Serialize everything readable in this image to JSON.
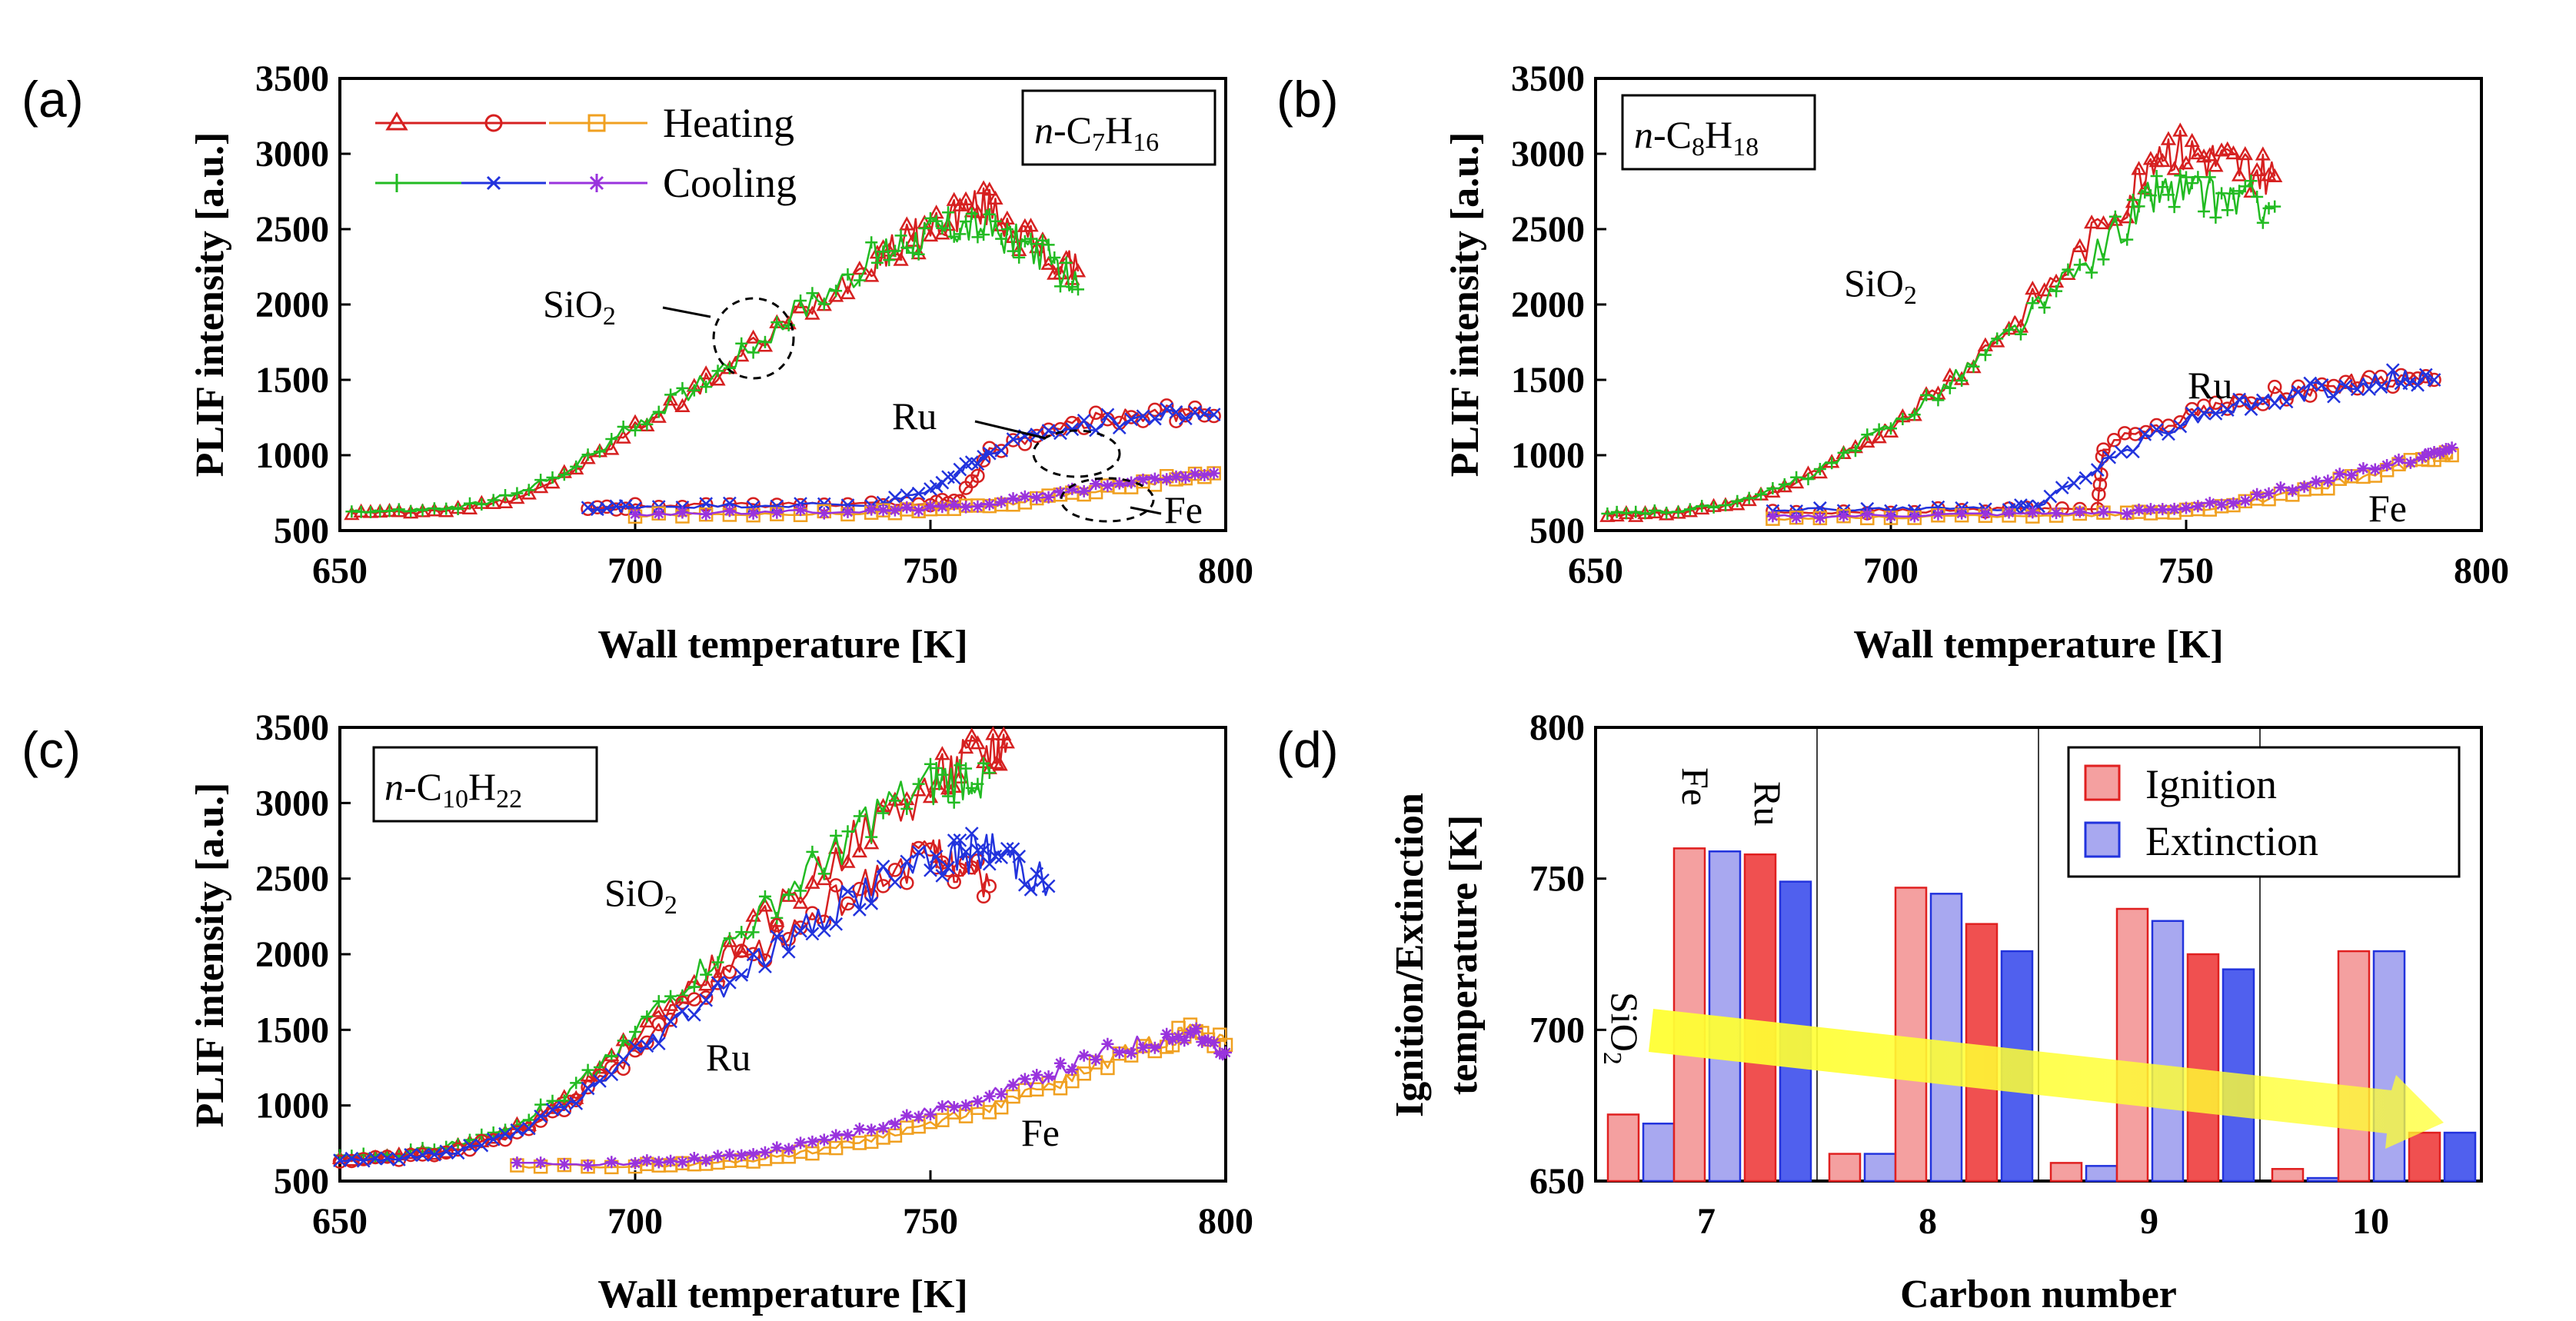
{
  "chart_data": [
    {
      "panel": "(a)",
      "type": "line",
      "fuel_label": {
        "italic": "n",
        "text": "-C",
        "sub1": "7",
        "mid": "H",
        "sub2": "16"
      },
      "xlabel": "Wall temperature [K]",
      "ylabel": "PLIF intensity [a.u.]",
      "xlim": [
        650,
        800
      ],
      "ylim": [
        500,
        3500
      ],
      "xticks": [
        "650",
        "700",
        "750",
        "800"
      ],
      "yticks": [
        "500",
        "1000",
        "1500",
        "2000",
        "2500",
        "3000",
        "3500"
      ],
      "legend": {
        "heating": "Heating",
        "cooling": "Cooling",
        "placement": "top-left"
      },
      "annotations": {
        "sio2": "SiO",
        "sio2_sub": "2",
        "ru": "Ru",
        "fe": "Fe"
      },
      "series": [
        {
          "name": "SiO2 heating",
          "mode": "heating",
          "color": "#d62020",
          "marker": "triangle",
          "x": [
            652,
            660,
            670,
            680,
            690,
            700,
            710,
            720,
            730,
            740,
            745,
            750,
            755,
            760,
            765,
            770,
            775
          ],
          "y": [
            620,
            620,
            640,
            720,
            900,
            1180,
            1420,
            1720,
            2000,
            2300,
            2400,
            2500,
            2620,
            2650,
            2480,
            2300,
            2220
          ]
        },
        {
          "name": "SiO2 cooling",
          "mode": "cooling",
          "color": "#22bb22",
          "marker": "plus",
          "x": [
            652,
            660,
            670,
            680,
            690,
            700,
            710,
            720,
            730,
            740,
            745,
            750,
            755,
            760,
            765,
            770,
            775
          ],
          "y": [
            630,
            630,
            650,
            740,
            930,
            1200,
            1450,
            1740,
            2020,
            2300,
            2400,
            2480,
            2520,
            2500,
            2420,
            2300,
            2100
          ]
        },
        {
          "name": "Ru heating",
          "mode": "heating",
          "color": "#d62020",
          "marker": "circle",
          "x": [
            692,
            700,
            720,
            740,
            750,
            755,
            760,
            770,
            780,
            790,
            798
          ],
          "y": [
            640,
            660,
            670,
            670,
            680,
            700,
            1020,
            1180,
            1250,
            1280,
            1260
          ]
        },
        {
          "name": "Ru cooling",
          "mode": "cooling",
          "color": "#2233dd",
          "marker": "x",
          "x": [
            692,
            700,
            720,
            740,
            750,
            755,
            760,
            770,
            780,
            790,
            798
          ],
          "y": [
            640,
            660,
            670,
            670,
            760,
            900,
            1020,
            1150,
            1220,
            1260,
            1270
          ]
        },
        {
          "name": "Fe heating",
          "mode": "heating",
          "color": "#f0a020",
          "marker": "square",
          "x": [
            700,
            720,
            740,
            750,
            760,
            770,
            780,
            790,
            798
          ],
          "y": [
            600,
            610,
            620,
            640,
            660,
            720,
            780,
            840,
            880
          ]
        },
        {
          "name": "Fe cooling",
          "mode": "cooling",
          "color": "#9933dd",
          "marker": "star",
          "x": [
            700,
            720,
            740,
            750,
            760,
            770,
            780,
            790,
            798
          ],
          "y": [
            610,
            620,
            630,
            650,
            680,
            740,
            800,
            860,
            880
          ]
        }
      ]
    },
    {
      "panel": "(b)",
      "type": "line",
      "fuel_label": {
        "italic": "n",
        "text": "-C",
        "sub1": "8",
        "mid": "H",
        "sub2": "18"
      },
      "xlabel": "Wall temperature [K]",
      "ylabel": "PLIF intensity [a.u.]",
      "xlim": [
        650,
        800
      ],
      "ylim": [
        500,
        3500
      ],
      "xticks": [
        "650",
        "700",
        "750",
        "800"
      ],
      "yticks": [
        "500",
        "1000",
        "1500",
        "2000",
        "2500",
        "3000",
        "3500"
      ],
      "annotations": {
        "sio2": "SiO",
        "sio2_sub": "2",
        "ru": "Ru",
        "fe": "Fe"
      },
      "series": [
        {
          "name": "SiO2 heating",
          "mode": "heating",
          "color": "#d62020",
          "marker": "triangle",
          "x": [
            652,
            660,
            670,
            680,
            690,
            700,
            710,
            720,
            730,
            740,
            745,
            750,
            755,
            760,
            765
          ],
          "y": [
            600,
            610,
            650,
            750,
            930,
            1200,
            1500,
            1850,
            2250,
            2700,
            3050,
            3000,
            2950,
            2900,
            2850
          ]
        },
        {
          "name": "SiO2 cooling",
          "mode": "cooling",
          "color": "#22bb22",
          "marker": "plus",
          "x": [
            652,
            660,
            670,
            680,
            690,
            700,
            710,
            720,
            730,
            740,
            745,
            750,
            755,
            760,
            765
          ],
          "y": [
            610,
            620,
            660,
            760,
            940,
            1200,
            1480,
            1800,
            2150,
            2550,
            2750,
            2750,
            2700,
            2700,
            2650
          ]
        },
        {
          "name": "Ru heating",
          "mode": "heating",
          "color": "#d62020",
          "marker": "circle",
          "x": [
            680,
            700,
            720,
            735,
            736,
            745,
            755,
            765,
            775,
            785,
            792
          ],
          "y": [
            620,
            630,
            640,
            650,
            1050,
            1200,
            1320,
            1400,
            1460,
            1520,
            1500
          ]
        },
        {
          "name": "Ru cooling",
          "mode": "cooling",
          "color": "#2233dd",
          "marker": "x",
          "x": [
            680,
            700,
            720,
            725,
            735,
            745,
            755,
            765,
            775,
            785,
            792
          ],
          "y": [
            640,
            640,
            650,
            660,
            930,
            1150,
            1300,
            1380,
            1440,
            1500,
            1500
          ]
        },
        {
          "name": "Fe heating",
          "mode": "heating",
          "color": "#f0a020",
          "marker": "square",
          "x": [
            680,
            700,
            720,
            740,
            750,
            760,
            770,
            780,
            790,
            795
          ],
          "y": [
            580,
            590,
            600,
            610,
            630,
            680,
            760,
            860,
            960,
            1000
          ]
        },
        {
          "name": "Fe cooling",
          "mode": "cooling",
          "color": "#9933dd",
          "marker": "star",
          "x": [
            680,
            700,
            720,
            740,
            750,
            760,
            770,
            780,
            790,
            795
          ],
          "y": [
            590,
            600,
            610,
            620,
            650,
            710,
            800,
            900,
            1000,
            1050
          ]
        }
      ]
    },
    {
      "panel": "(c)",
      "type": "line",
      "fuel_label": {
        "italic": "n",
        "text": "-C",
        "sub1": "10",
        "mid": "H",
        "sub2": "22"
      },
      "xlabel": "Wall temperature [K]",
      "ylabel": "PLIF intensity [a.u.]",
      "xlim": [
        650,
        800
      ],
      "ylim": [
        500,
        3500
      ],
      "xticks": [
        "650",
        "700",
        "750",
        "800"
      ],
      "yticks": [
        "500",
        "1000",
        "1500",
        "2000",
        "2500",
        "3000",
        "3500"
      ],
      "annotations": {
        "sio2": "SiO",
        "sio2_sub": "2",
        "ru": "Ru",
        "fe": "Fe"
      },
      "series": [
        {
          "name": "SiO2 heating",
          "mode": "heating",
          "color": "#d62020",
          "marker": "triangle",
          "x": [
            650,
            660,
            670,
            680,
            690,
            700,
            710,
            720,
            730,
            740,
            750,
            755,
            760,
            763
          ],
          "y": [
            650,
            660,
            720,
            850,
            1080,
            1450,
            1800,
            2150,
            2500,
            2850,
            3100,
            3250,
            3350,
            3400
          ]
        },
        {
          "name": "SiO2 cooling",
          "mode": "cooling",
          "color": "#22bb22",
          "marker": "plus",
          "x": [
            650,
            660,
            670,
            680,
            690,
            700,
            710,
            720,
            730,
            740,
            750,
            755,
            760
          ],
          "y": [
            660,
            680,
            750,
            880,
            1120,
            1500,
            1850,
            2200,
            2550,
            2900,
            3100,
            3150,
            3200
          ]
        },
        {
          "name": "Ru heating",
          "mode": "heating",
          "color": "#d62020",
          "marker": "circle",
          "x": [
            650,
            660,
            670,
            680,
            690,
            700,
            710,
            720,
            730,
            740,
            750,
            755,
            760
          ],
          "y": [
            640,
            650,
            700,
            820,
            1030,
            1350,
            1680,
            2000,
            2250,
            2500,
            2650,
            2600,
            2450
          ]
        },
        {
          "name": "Ru cooling",
          "mode": "cooling",
          "color": "#2233dd",
          "marker": "x",
          "x": [
            650,
            660,
            670,
            680,
            690,
            700,
            710,
            720,
            730,
            740,
            750,
            755,
            760,
            765,
            770
          ],
          "y": [
            640,
            650,
            700,
            820,
            1030,
            1350,
            1650,
            1950,
            2200,
            2450,
            2600,
            2650,
            2700,
            2600,
            2450
          ]
        },
        {
          "name": "Fe heating",
          "mode": "heating",
          "color": "#f0a020",
          "marker": "square",
          "x": [
            680,
            700,
            710,
            720,
            730,
            740,
            750,
            760,
            770,
            780,
            790,
            795,
            800
          ],
          "y": [
            600,
            600,
            610,
            640,
            700,
            780,
            880,
            990,
            1120,
            1300,
            1450,
            1500,
            1400
          ]
        },
        {
          "name": "Fe cooling",
          "mode": "cooling",
          "color": "#9933dd",
          "marker": "star",
          "x": [
            680,
            700,
            710,
            720,
            730,
            740,
            750,
            760,
            770,
            780,
            790,
            795,
            800
          ],
          "y": [
            610,
            620,
            640,
            680,
            750,
            850,
            960,
            1080,
            1200,
            1350,
            1450,
            1450,
            1350
          ]
        }
      ]
    },
    {
      "panel": "(d)",
      "type": "bar",
      "xlabel": "Carbon number",
      "ylabel_line1": "Ignition/Extinction",
      "ylabel_line2": "temperature [K]",
      "ylim": [
        650,
        800
      ],
      "yticks": [
        "650",
        "700",
        "750",
        "800"
      ],
      "categories": [
        "7",
        "8",
        "9",
        "10"
      ],
      "legend": {
        "ignition": "Ignition",
        "extinction": "Extinction",
        "placement": "top-right"
      },
      "surface_labels": {
        "fe": "Fe",
        "ru": "Ru",
        "sio2": "SiO",
        "sio2_sub": "2"
      },
      "colors": {
        "ignition_light": "#f4a0a0",
        "extinction_light": "#a8a8f0",
        "ignition": "#f05050",
        "extinction": "#5060ee"
      },
      "groups": [
        {
          "carbon": "7",
          "sio2": {
            "ignition": 672,
            "extinction": 669
          },
          "fe": {
            "ignition": 760,
            "extinction": 759
          },
          "ru": {
            "ignition": 758,
            "extinction": 749
          }
        },
        {
          "carbon": "8",
          "sio2": {
            "ignition": 659,
            "extinction": 659
          },
          "fe": {
            "ignition": 747,
            "extinction": 745
          },
          "ru": {
            "ignition": 735,
            "extinction": 726
          }
        },
        {
          "carbon": "9",
          "sio2": {
            "ignition": 656,
            "extinction": 655
          },
          "fe": {
            "ignition": 740,
            "extinction": 736
          },
          "ru": {
            "ignition": 725,
            "extinction": 720
          }
        },
        {
          "carbon": "10",
          "sio2": {
            "ignition": 654,
            "extinction": 651
          },
          "fe": {
            "ignition": 726,
            "extinction": 726
          },
          "ru": {
            "ignition": 666,
            "extinction": 666
          }
        }
      ]
    }
  ]
}
